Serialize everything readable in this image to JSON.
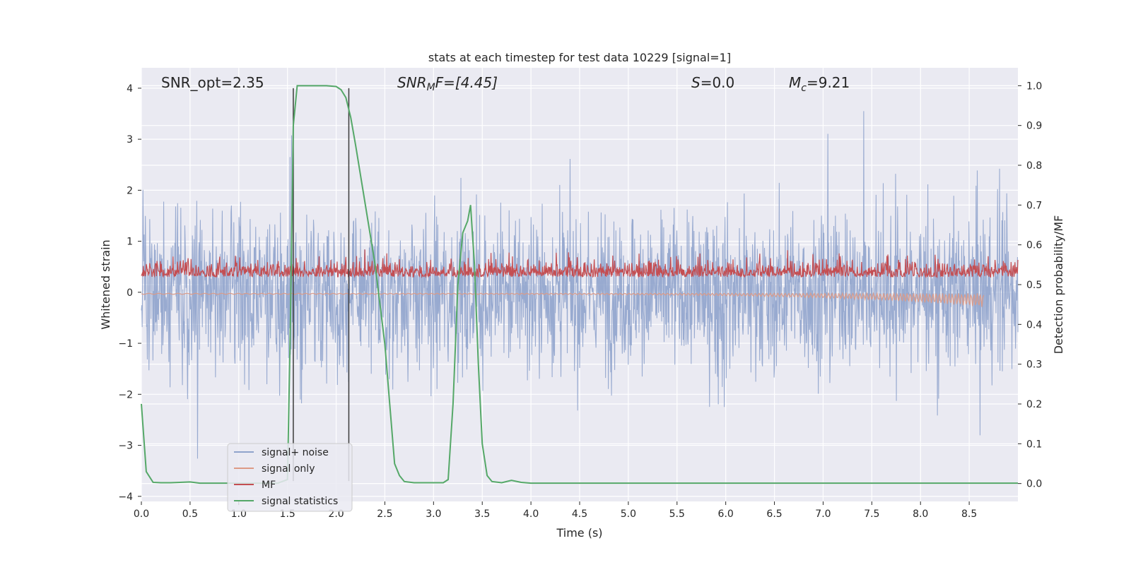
{
  "chart_data": {
    "type": "line",
    "title": "stats at each timestep for test data 10229 [signal=1]",
    "xlabel": "Time (s)",
    "ylabel_left": "Whitened strain",
    "ylabel_right": "Detection probability/MF",
    "xlim": [
      0.0,
      9.0
    ],
    "ylim_left": [
      -4.1,
      4.4
    ],
    "ylim_right": [
      -0.045,
      1.045
    ],
    "x_ticks": [
      "0.0",
      "0.5",
      "1.0",
      "1.5",
      "2.0",
      "2.5",
      "3.0",
      "3.5",
      "4.0",
      "4.5",
      "5.0",
      "5.5",
      "6.0",
      "6.5",
      "7.0",
      "7.5",
      "8.0",
      "8.5"
    ],
    "y_left_ticks": [
      "4",
      "3",
      "2",
      "1",
      "0",
      "−1",
      "−2",
      "−3",
      "−4"
    ],
    "y_right_ticks": [
      "1.0",
      "0.9",
      "0.8",
      "0.7",
      "0.6",
      "0.5",
      "0.4",
      "0.3",
      "0.2",
      "0.1",
      "0.0"
    ],
    "grid": true,
    "legend_position": "lower-left",
    "annotations": {
      "snr_opt": "SNR_opt=2.35",
      "snr_mf_main": "SNR",
      "snr_mf_sub": "M",
      "snr_mf_rest": "F=[4.45]",
      "s_main": "S",
      "s_rest": "=0.0",
      "mc_main": "M",
      "mc_sub": "c",
      "mc_rest": "=9.21"
    },
    "vertical_lines": [
      1.56,
      2.13
    ],
    "series": [
      {
        "name": "signal+ noise",
        "color": "#8fa3cc",
        "description_values": {
          "envelope_upper": 2.2,
          "envelope_lower": -2.5,
          "max": 4.0,
          "min": -3.7
        }
      },
      {
        "name": "signal only",
        "color": "#dd9a86"
      },
      {
        "name": "MF",
        "color": "#c44e52"
      },
      {
        "name": "signal statistics",
        "color": "#55a868",
        "axis": "right",
        "x": [
          0.0,
          0.05,
          0.12,
          0.2,
          0.3,
          0.5,
          0.6,
          1.0,
          1.4,
          1.5,
          1.53,
          1.56,
          1.6,
          1.65,
          1.7,
          1.8,
          1.9,
          2.0,
          2.05,
          2.1,
          2.15,
          2.2,
          2.3,
          2.4,
          2.5,
          2.55,
          2.6,
          2.65,
          2.7,
          2.8,
          3.0,
          3.1,
          3.15,
          3.2,
          3.25,
          3.3,
          3.35,
          3.38,
          3.42,
          3.46,
          3.5,
          3.55,
          3.6,
          3.7,
          3.8,
          3.9,
          4.0,
          4.5,
          5.0,
          6.0,
          7.0,
          8.0,
          9.0
        ],
        "y": [
          0.2,
          0.03,
          0.003,
          0.002,
          0.002,
          0.004,
          0.001,
          0.001,
          0.001,
          0.01,
          0.4,
          0.9,
          1.0,
          1.0,
          1.0,
          1.0,
          1.0,
          0.998,
          0.99,
          0.97,
          0.92,
          0.85,
          0.7,
          0.55,
          0.35,
          0.2,
          0.05,
          0.02,
          0.005,
          0.002,
          0.002,
          0.002,
          0.01,
          0.2,
          0.5,
          0.63,
          0.66,
          0.7,
          0.55,
          0.3,
          0.1,
          0.02,
          0.005,
          0.002,
          0.008,
          0.003,
          0.001,
          0.001,
          0.001,
          0.001,
          0.001,
          0.001,
          0.001
        ]
      }
    ]
  }
}
